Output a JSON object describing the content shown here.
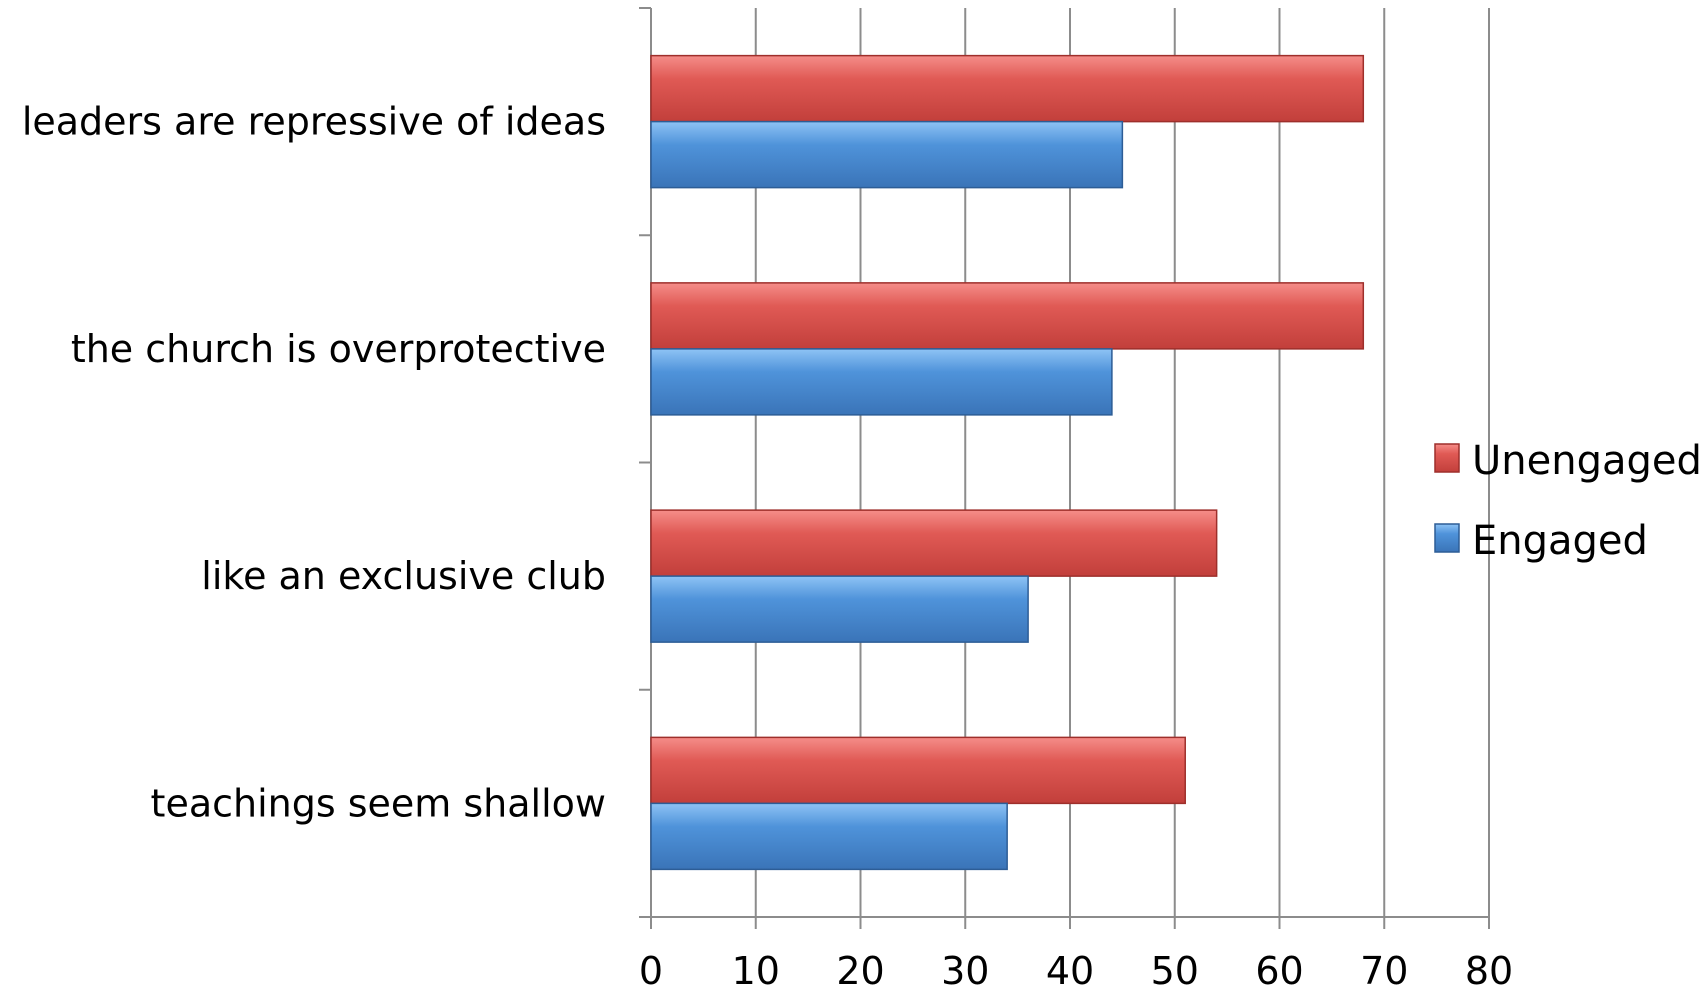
{
  "chart_data": {
    "type": "bar",
    "orientation": "horizontal",
    "categories": [
      "leaders are repressive of ideas",
      "the church is overprotective",
      "like an exclusive club",
      "teachings seem shallow"
    ],
    "series": [
      {
        "name": "Unengaged",
        "values": [
          68,
          68,
          54,
          51
        ]
      },
      {
        "name": "Engaged",
        "values": [
          45,
          44,
          36,
          34
        ]
      }
    ],
    "xlim": [
      0,
      80
    ],
    "xticks": [
      "0",
      "10",
      "20",
      "30",
      "40",
      "50",
      "60",
      "70",
      "80"
    ],
    "grid": true,
    "legend_position": "right",
    "colors": {
      "Unengaged": "#d9534f",
      "Engaged": "#4a8fd6"
    }
  }
}
